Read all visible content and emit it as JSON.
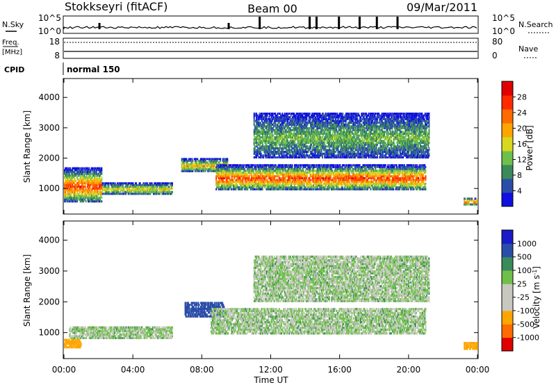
{
  "header": {
    "station": "Stokkseyri (fitACF)",
    "beam": "Beam 00",
    "date": "09/Mar/2011"
  },
  "strips": {
    "nsky_label": "N.Sky",
    "nsearch_label": "N.Search",
    "nsky_ticks": [
      "10^5",
      "10^0"
    ],
    "nsearch_ticks": [
      "10^5",
      "10^0"
    ],
    "freq_label_1": "Freq.",
    "freq_label_2": "[MHz]",
    "freq_ticks": [
      "18",
      "8"
    ],
    "nave_label": "Nave",
    "nave_ticks": [
      "80",
      "0"
    ],
    "cpid_label": "CPID",
    "cpid_value": "normal 150"
  },
  "colors": {
    "power": [
      "#1010e0",
      "#2a4ea8",
      "#3a8a5a",
      "#6ec04a",
      "#d8d820",
      "#ffa500",
      "#ff6a00",
      "#ff2a00",
      "#e00000"
    ],
    "velocity": [
      "#e00000",
      "#ff6a00",
      "#ffa500",
      "#c8c8c0",
      "#c8c8c0",
      "#6ec04a",
      "#3a8a5a",
      "#2a4ea8",
      "#1a1ac8"
    ]
  },
  "chart_data": [
    {
      "type": "heatmap",
      "title": "",
      "xlabel": "Time UT",
      "ylabel": "Slant Range [km]",
      "xlim": [
        0,
        24
      ],
      "ylim": [
        180,
        4600
      ],
      "xticks": [
        "00:00",
        "04:00",
        "08:00",
        "12:00",
        "16:00",
        "20:00",
        "00:00"
      ],
      "yticks": [
        "1000",
        "2000",
        "3000",
        "4000"
      ],
      "colorbar_label": "Power [dB]",
      "colorbar_ticks": [
        "28",
        "24",
        "20",
        "16",
        "12",
        "8",
        "4"
      ],
      "colorbar_range": [
        0,
        32
      ],
      "bands": [
        {
          "t0": 0.0,
          "t1": 2.2,
          "r0": 550,
          "r1": 1700,
          "peak": 28
        },
        {
          "t0": 2.2,
          "t1": 6.3,
          "r0": 800,
          "r1": 1200,
          "peak": 18
        },
        {
          "t0": 6.8,
          "t1": 9.5,
          "r0": 1550,
          "r1": 2000,
          "peak": 20
        },
        {
          "t0": 8.8,
          "t1": 21.0,
          "r0": 950,
          "r1": 1800,
          "peak": 28
        },
        {
          "t0": 11.0,
          "t1": 21.2,
          "r0": 2000,
          "r1": 3500,
          "peak": 12
        },
        {
          "t0": 23.2,
          "t1": 24.0,
          "r0": 450,
          "r1": 700,
          "peak": 26
        }
      ]
    },
    {
      "type": "heatmap",
      "title": "",
      "xlabel": "Time UT",
      "ylabel": "Slant Range [km]",
      "xlim": [
        0,
        24
      ],
      "ylim": [
        180,
        4600
      ],
      "xticks": [
        "00:00",
        "04:00",
        "08:00",
        "12:00",
        "16:00",
        "20:00",
        "00:00"
      ],
      "yticks": [
        "1000",
        "2000",
        "3000",
        "4000"
      ],
      "colorbar_label": "Velocity [m s^-1]",
      "colorbar_ticks": [
        "1000",
        "500",
        "100",
        "25",
        "-25",
        "-100",
        "-500",
        "-1000"
      ],
      "bands": [
        {
          "t0": 0.0,
          "t1": 1.0,
          "r0": 500,
          "r1": 800,
          "velocity": -150
        },
        {
          "t0": 0.3,
          "t1": 6.3,
          "r0": 800,
          "r1": 1200,
          "velocity": 0
        },
        {
          "t0": 7.0,
          "t1": 9.3,
          "r0": 1500,
          "r1": 2000,
          "velocity": 300
        },
        {
          "t0": 8.5,
          "t1": 21.0,
          "r0": 950,
          "r1": 1800,
          "velocity": 0
        },
        {
          "t0": 11.0,
          "t1": 21.2,
          "r0": 2000,
          "r1": 3500,
          "velocity": 0
        },
        {
          "t0": 23.2,
          "t1": 24.0,
          "r0": 450,
          "r1": 700,
          "velocity": -200
        }
      ]
    }
  ]
}
